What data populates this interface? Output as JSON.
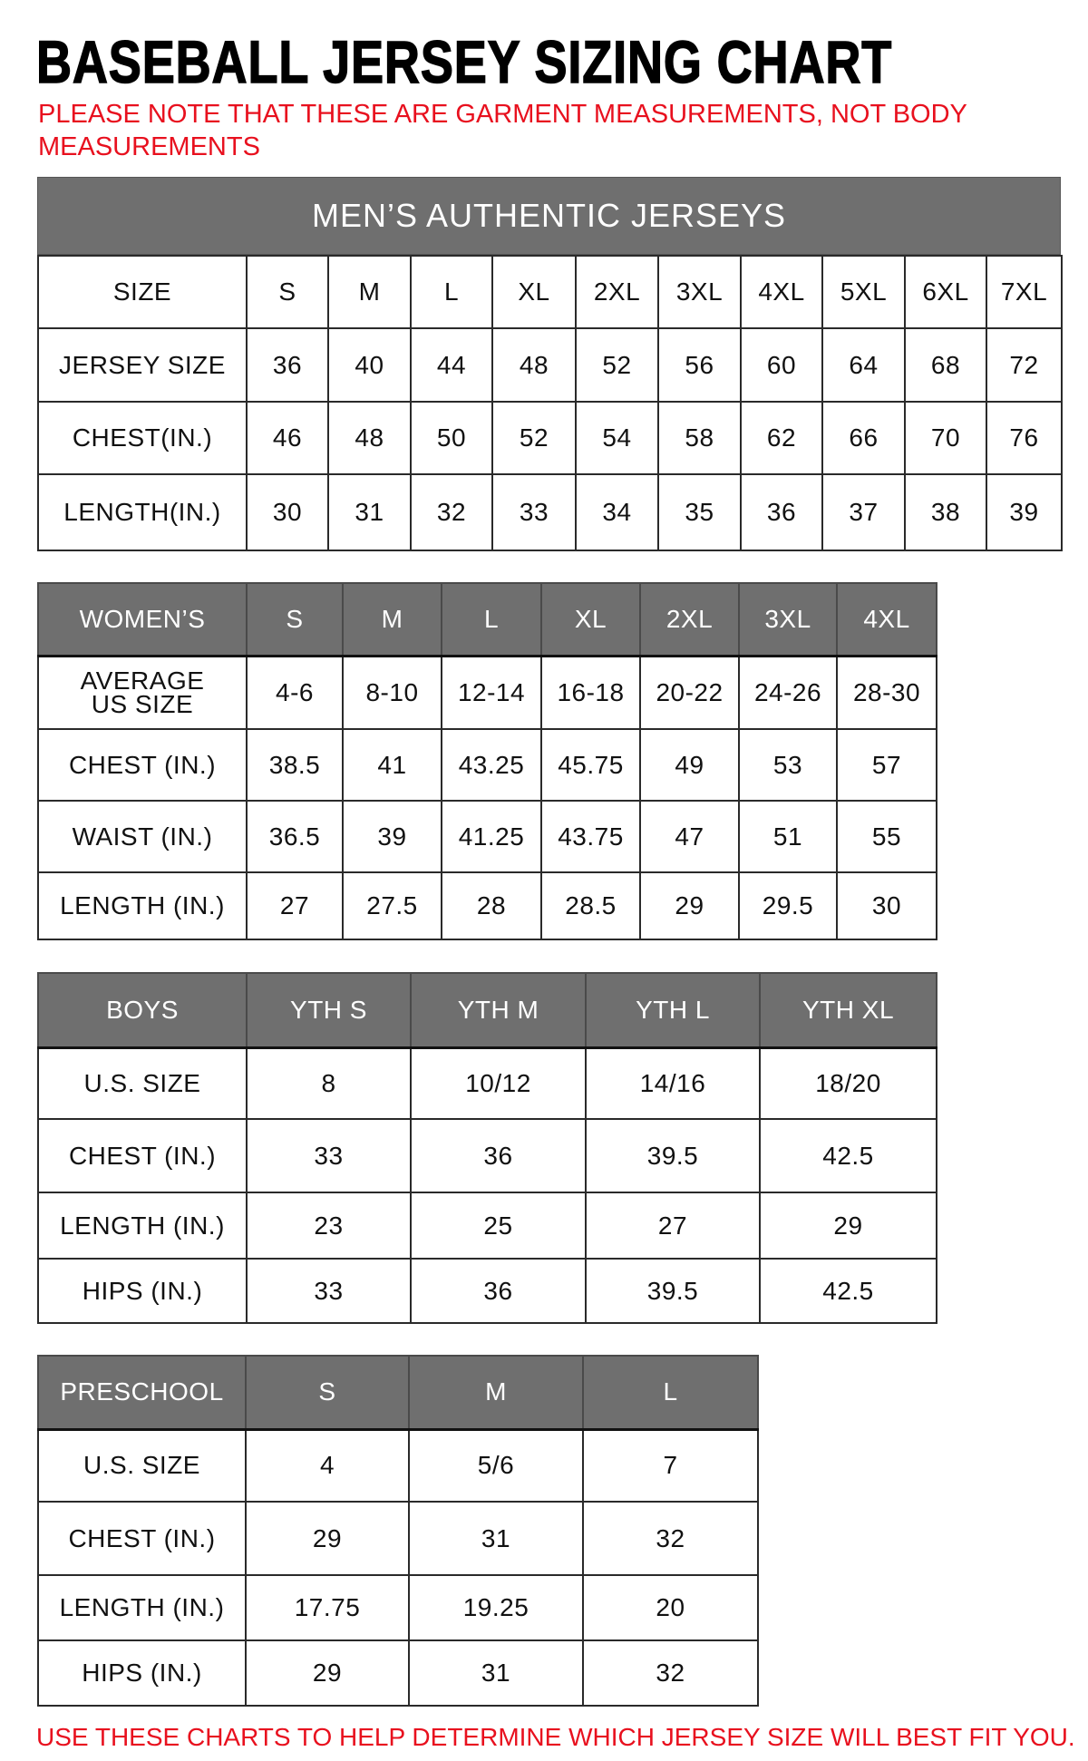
{
  "title": "BASEBALL JERSEY SIZING CHART",
  "note_top": "PLEASE NOTE THAT THESE ARE GARMENT MEASUREMENTS, NOT BODY MEASUREMENTS",
  "note_bottom": "USE THESE CHARTS TO HELP DETERMINE WHICH JERSEY SIZE WILL BEST FIT YOU.",
  "colors": {
    "header_gray": "#6f6f6f",
    "note_red": "#e8101e"
  },
  "tables": [
    {
      "id": "mens",
      "title": "MEN’S AUTHENTIC JERSEYS",
      "header": [
        "SIZE",
        "S",
        "M",
        "L",
        "XL",
        "2XL",
        "3XL",
        "4XL",
        "5XL",
        "6XL",
        "7XL"
      ],
      "rows": [
        [
          "JERSEY SIZE",
          "36",
          "40",
          "44",
          "48",
          "52",
          "56",
          "60",
          "64",
          "68",
          "72"
        ],
        [
          "CHEST(IN.)",
          "46",
          "48",
          "50",
          "52",
          "54",
          "58",
          "62",
          "66",
          "70",
          "76"
        ],
        [
          "LENGTH(IN.)",
          "30",
          "31",
          "32",
          "33",
          "34",
          "35",
          "36",
          "37",
          "38",
          "39"
        ]
      ]
    },
    {
      "id": "womens",
      "header": [
        "WOMEN’S",
        "S",
        "M",
        "L",
        "XL",
        "2XL",
        "3XL",
        "4XL"
      ],
      "rows": [
        [
          "AVERAGE US SIZE",
          "4-6",
          "8-10",
          "12-14",
          "16-18",
          "20-22",
          "24-26",
          "28-30"
        ],
        [
          "CHEST (IN.)",
          "38.5",
          "41",
          "43.25",
          "45.75",
          "49",
          "53",
          "57"
        ],
        [
          "WAIST (IN.)",
          "36.5",
          "39",
          "41.25",
          "43.75",
          "47",
          "51",
          "55"
        ],
        [
          "LENGTH (IN.)",
          "27",
          "27.5",
          "28",
          "28.5",
          "29",
          "29.5",
          "30"
        ]
      ]
    },
    {
      "id": "boys",
      "header": [
        "BOYS",
        "YTH S",
        "YTH M",
        "YTH L",
        "YTH XL"
      ],
      "rows": [
        [
          "U.S. SIZE",
          "8",
          "10/12",
          "14/16",
          "18/20"
        ],
        [
          "CHEST (IN.)",
          "33",
          "36",
          "39.5",
          "42.5"
        ],
        [
          "LENGTH (IN.)",
          "23",
          "25",
          "27",
          "29"
        ],
        [
          "HIPS (IN.)",
          "33",
          "36",
          "39.5",
          "42.5"
        ]
      ]
    },
    {
      "id": "preschool",
      "header": [
        "PRESCHOOL",
        "S",
        "M",
        "L"
      ],
      "rows": [
        [
          "U.S. SIZE",
          "4",
          "5/6",
          "7"
        ],
        [
          "CHEST (IN.)",
          "29",
          "31",
          "32"
        ],
        [
          "LENGTH (IN.)",
          "17.75",
          "19.25",
          "20"
        ],
        [
          "HIPS (IN.)",
          "29",
          "31",
          "32"
        ]
      ]
    }
  ]
}
